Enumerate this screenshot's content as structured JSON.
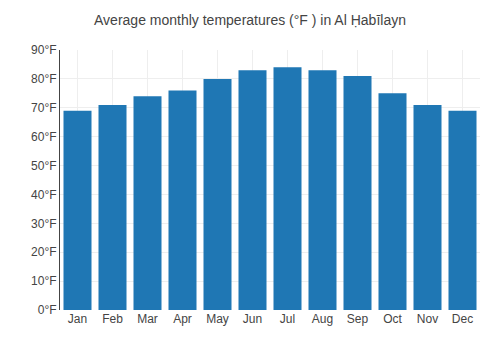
{
  "chart_data": {
    "type": "bar",
    "title": "Average monthly temperatures (°F ) in Al Ḥabīlayn",
    "categories": [
      "Jan",
      "Feb",
      "Mar",
      "Apr",
      "May",
      "Jun",
      "Jul",
      "Aug",
      "Sep",
      "Oct",
      "Nov",
      "Dec"
    ],
    "values": [
      69,
      71,
      74,
      76,
      80,
      83,
      84,
      83,
      81,
      75,
      71,
      69
    ],
    "ylim": [
      0,
      90
    ],
    "yticks": [
      {
        "value": 0,
        "label": "0°F"
      },
      {
        "value": 10,
        "label": "10°F"
      },
      {
        "value": 20,
        "label": "20°F"
      },
      {
        "value": 30,
        "label": "30°F"
      },
      {
        "value": 40,
        "label": "40°F"
      },
      {
        "value": 50,
        "label": "50°F"
      },
      {
        "value": 60,
        "label": "60°F"
      },
      {
        "value": 70,
        "label": "70°F"
      },
      {
        "value": 80,
        "label": "80°F"
      },
      {
        "value": 90,
        "label": "90°F"
      }
    ],
    "grid": true
  }
}
